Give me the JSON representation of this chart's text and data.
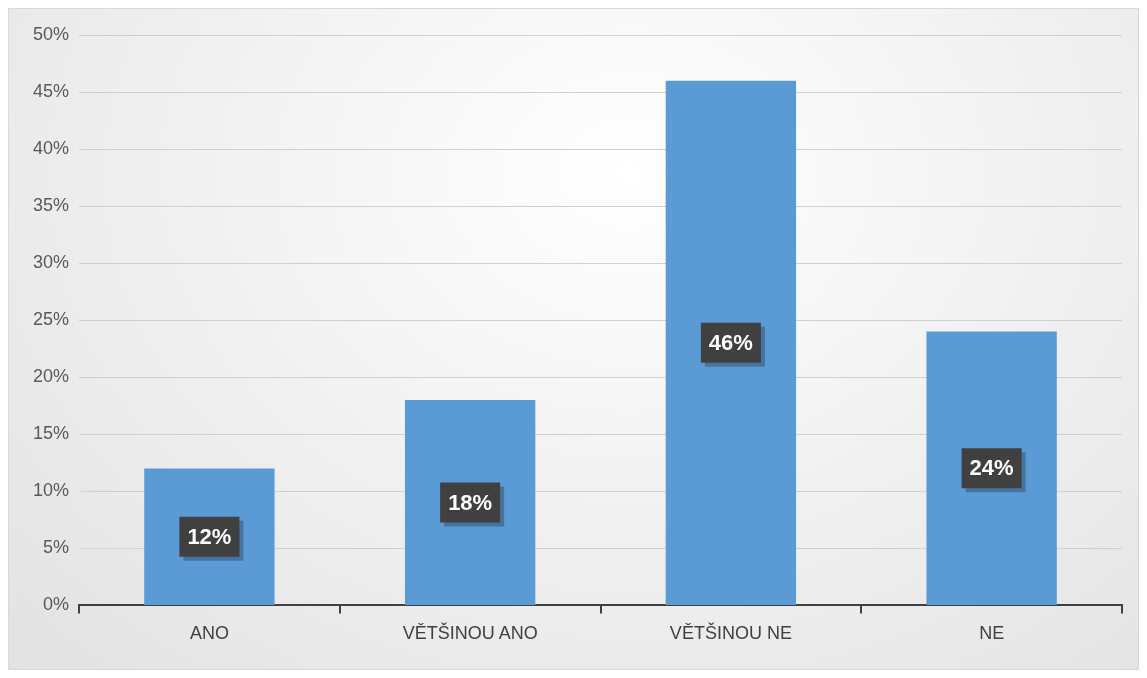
{
  "chart_data": {
    "type": "bar",
    "categories": [
      "ANO",
      "VĚTŠINOU ANO",
      "VĚTŠINOU NE",
      "NE"
    ],
    "values": [
      12,
      18,
      46,
      24
    ],
    "color": "#5b9bd5",
    "value_labels": [
      "12%",
      "18%",
      "46%",
      "24%"
    ],
    "ylim": [
      0,
      50
    ],
    "yticks": [
      {
        "value": 0,
        "label": "0%"
      },
      {
        "value": 5,
        "label": "5%"
      },
      {
        "value": 10,
        "label": "10%"
      },
      {
        "value": 15,
        "label": "15%"
      },
      {
        "value": 20,
        "label": "20%"
      },
      {
        "value": 25,
        "label": "25%"
      },
      {
        "value": 30,
        "label": "30%"
      },
      {
        "value": 35,
        "label": "35%"
      },
      {
        "value": 40,
        "label": "40%"
      },
      {
        "value": 45,
        "label": "45%"
      },
      {
        "value": 50,
        "label": "50%"
      }
    ],
    "grid": "y",
    "legend": false
  }
}
